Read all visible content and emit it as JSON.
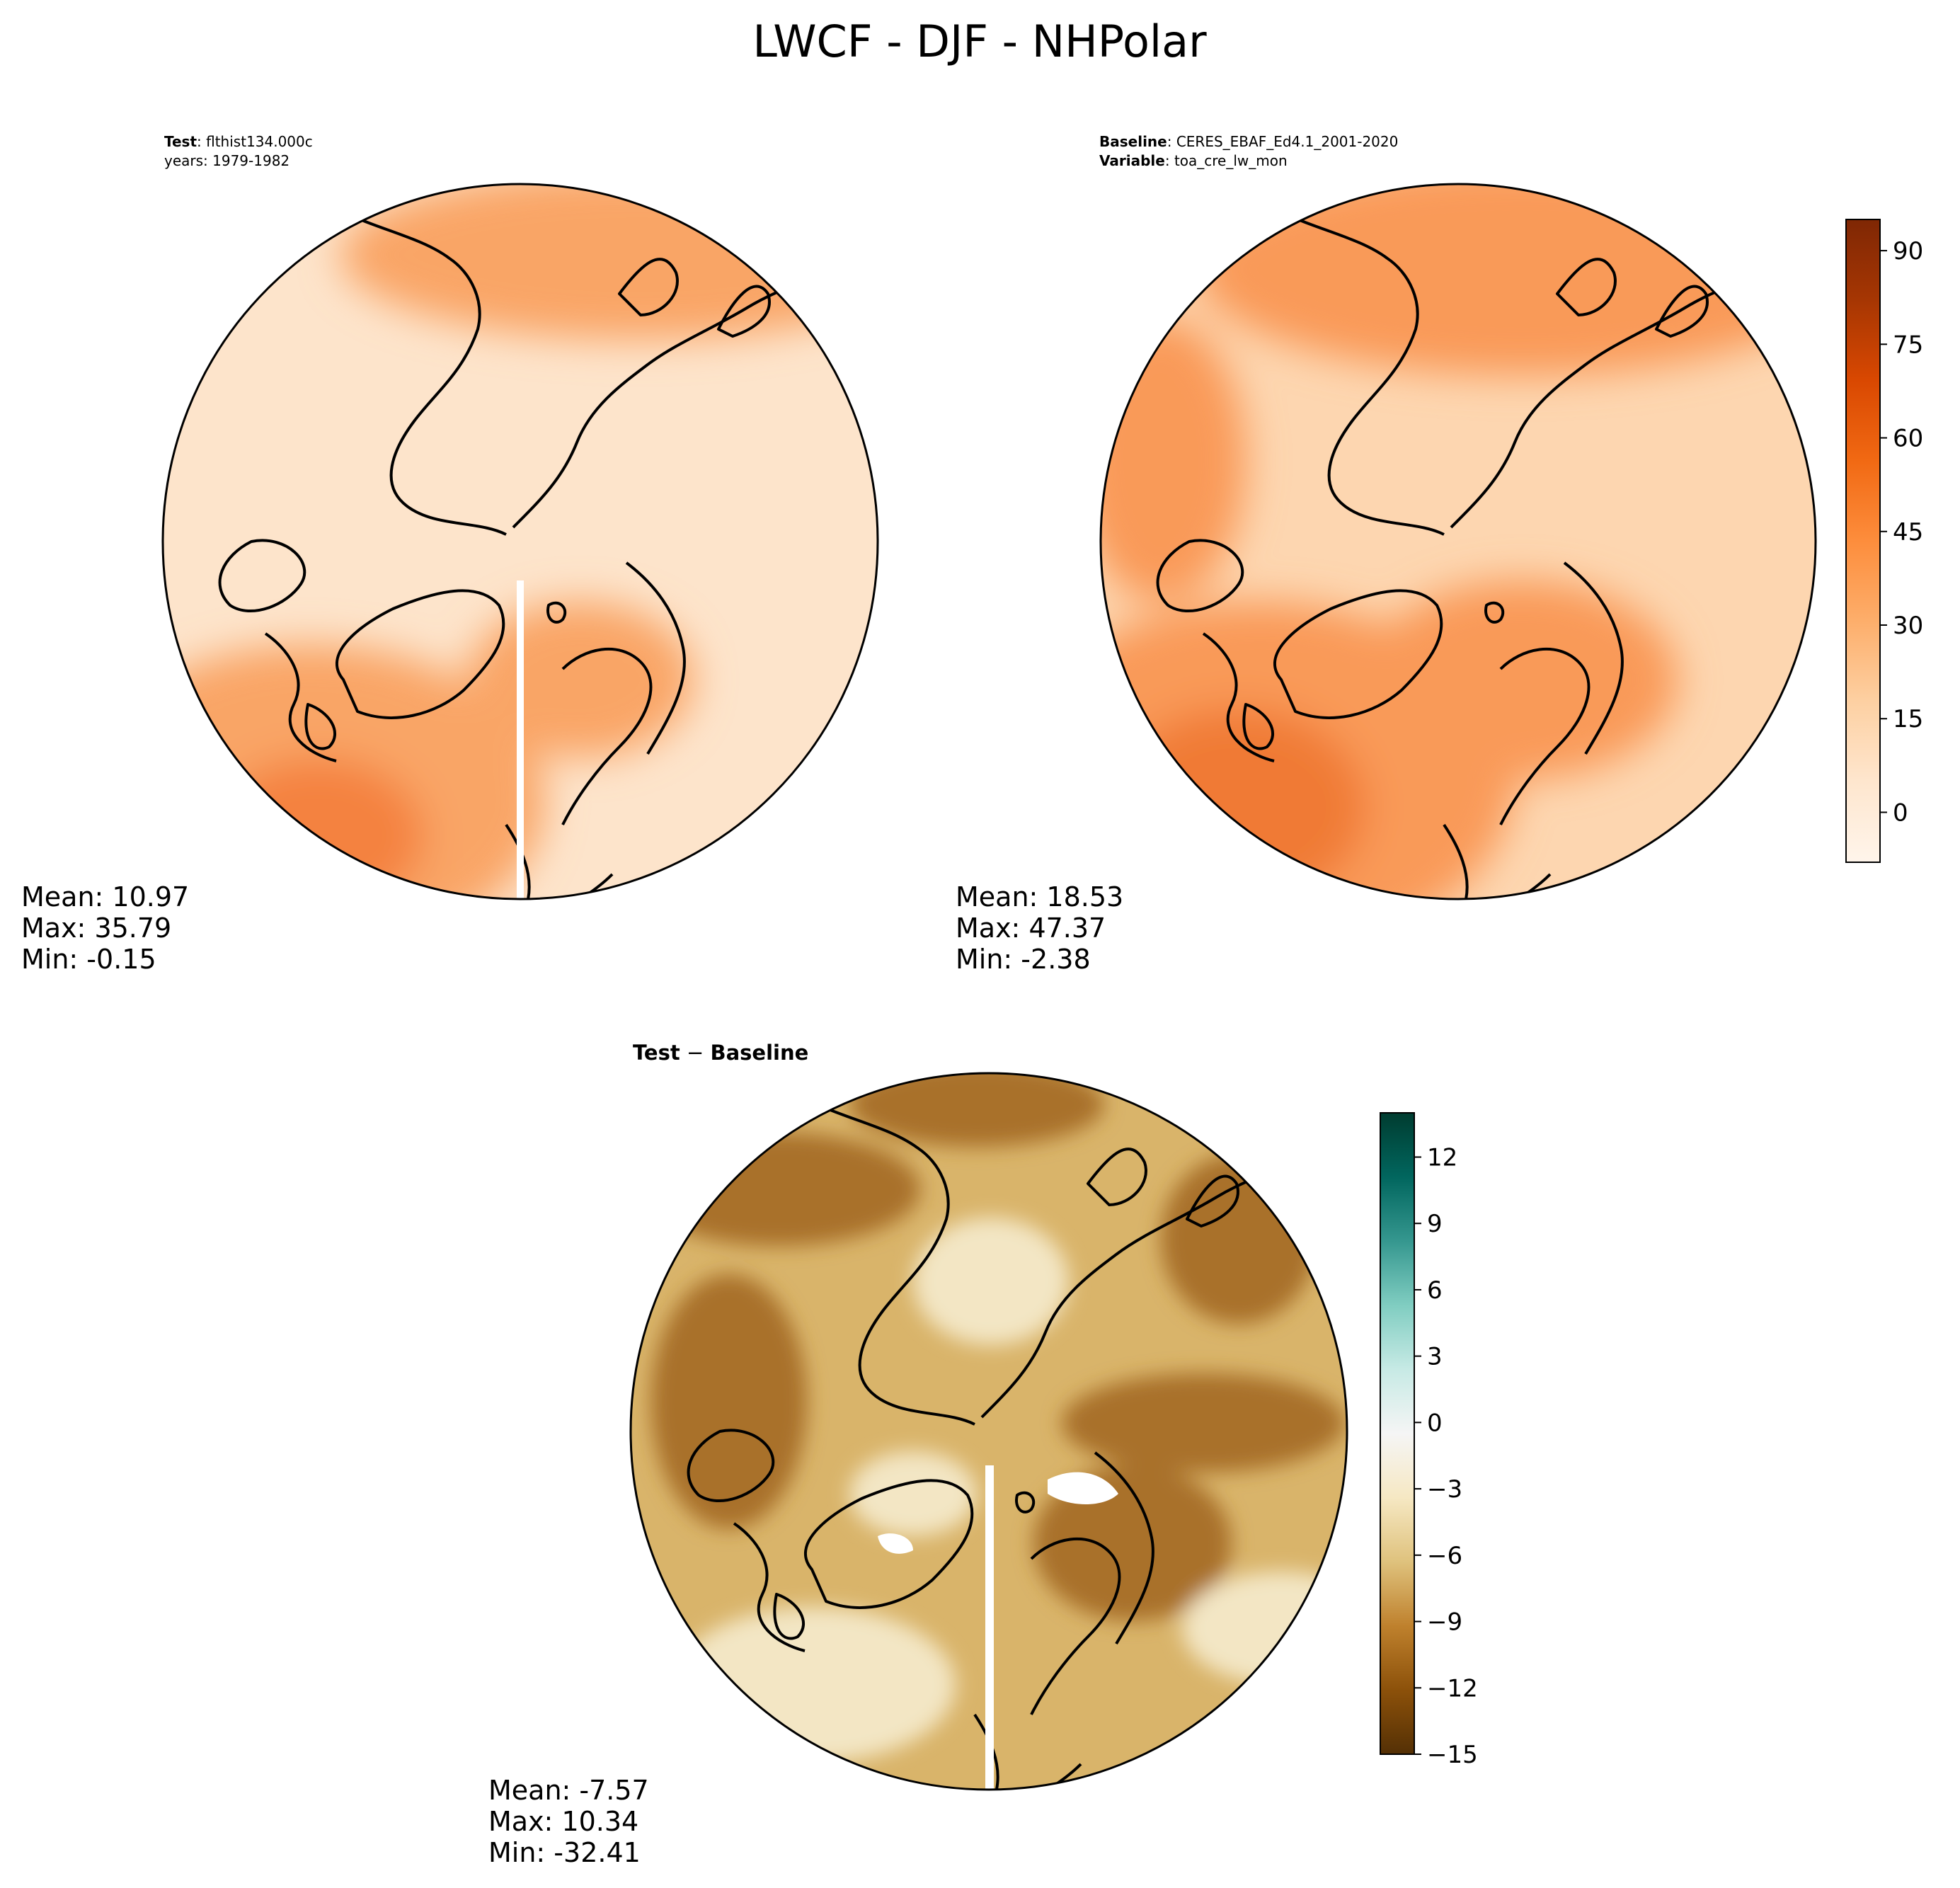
{
  "figure": {
    "title": "LWCF - DJF - NHPolar"
  },
  "panels": {
    "test": {
      "label_bold": "Test",
      "label_value": ": flthist134.000c",
      "years_line": "years: 1979-1982",
      "stats": [
        "Mean: 10.97",
        "Max: 35.79",
        "Min: -0.15"
      ]
    },
    "baseline": {
      "label_bold": "Baseline",
      "label_value": ": CERES_EBAF_Ed4.1_2001-2020",
      "variable_bold": "Variable",
      "variable_value": ": toa_cre_lw_mon",
      "stats": [
        "Mean: 18.53",
        "Max: 47.37",
        "Min: -2.38"
      ]
    },
    "diff": {
      "title_test": "Test",
      "title_sep": " − ",
      "title_baseline": "Baseline",
      "stats": [
        "Mean: -7.57",
        "Max: 10.34",
        "Min: -32.41"
      ]
    }
  },
  "colorbars": {
    "main": {
      "colormap": "Oranges",
      "ticks": [
        "0",
        "15",
        "30",
        "45",
        "60",
        "75",
        "90"
      ],
      "range": [
        -8,
        95
      ],
      "colors": [
        "#fff5eb",
        "#fee6ce",
        "#fdd0a2",
        "#fdae6b",
        "#fd8d3c",
        "#f16913",
        "#d94801",
        "#a63603",
        "#7f2704"
      ]
    },
    "diff": {
      "colormap": "BrBG",
      "ticks": [
        "12",
        "9",
        "6",
        "3",
        "0",
        "−3",
        "−6",
        "−9",
        "−12",
        "−15"
      ],
      "range": [
        -15,
        14
      ],
      "colors": [
        "#543005",
        "#8c510a",
        "#bf812d",
        "#dfc27d",
        "#f6e8c3",
        "#f5f5f5",
        "#c7eae5",
        "#80cdc1",
        "#35978f",
        "#01665e",
        "#003c30"
      ]
    }
  },
  "map_colors": {
    "test_base": "#fde4cb",
    "test_warm": "#f9a566",
    "test_hot": "#f4823f",
    "baseline_base": "#fdd6b0",
    "baseline_warm": "#f99a58",
    "baseline_hot": "#f07a35",
    "diff_base": "#d9b46a",
    "diff_dark": "#a9712a",
    "diff_light": "#f3e6c4",
    "coast": "#000000"
  }
}
